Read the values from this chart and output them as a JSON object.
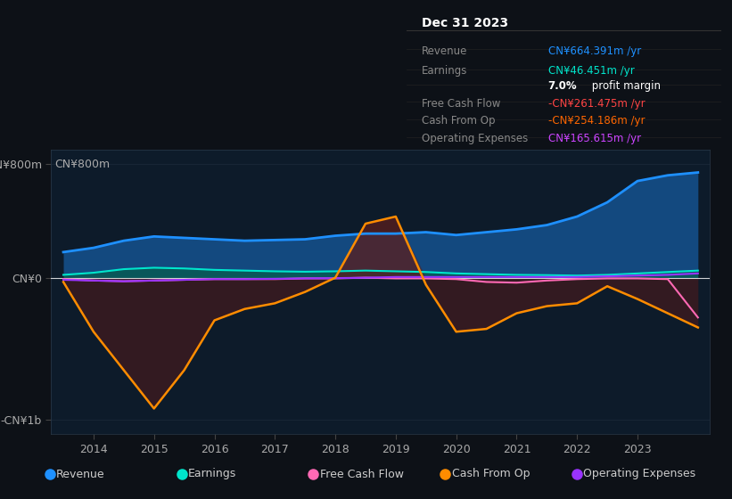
{
  "bg_color": "#0d1117",
  "plot_bg_color": "#0d1b2a",
  "title_box": {
    "date": "Dec 31 2023",
    "rows": [
      {
        "label": "Revenue",
        "value": "CN¥664.391m /yr",
        "value_color": "#00bfff"
      },
      {
        "label": "Earnings",
        "value": "CN¥46.451m /yr",
        "value_color": "#00e5cc"
      },
      {
        "label": "",
        "value": "7.0% profit margin",
        "value_color": "#ffffff",
        "bold_part": "7.0%"
      },
      {
        "label": "Free Cash Flow",
        "value": "-CN¥261.475m /yr",
        "value_color": "#ff4444"
      },
      {
        "label": "Cash From Op",
        "value": "-CN¥254.186m /yr",
        "value_color": "#ff6600"
      },
      {
        "label": "Operating Expenses",
        "value": "CN¥165.615m /yr",
        "value_color": "#cc44ff"
      }
    ]
  },
  "years": [
    2013.5,
    2014,
    2014.5,
    2015,
    2015.5,
    2016,
    2016.5,
    2017,
    2017.5,
    2018,
    2018.5,
    2019,
    2019.5,
    2020,
    2020.5,
    2021,
    2021.5,
    2022,
    2022.5,
    2023,
    2023.5,
    2024
  ],
  "revenue": [
    180,
    210,
    260,
    290,
    280,
    270,
    260,
    265,
    270,
    295,
    310,
    310,
    320,
    300,
    320,
    340,
    370,
    430,
    530,
    680,
    720,
    740
  ],
  "earnings": [
    20,
    35,
    60,
    70,
    65,
    55,
    50,
    45,
    42,
    45,
    50,
    45,
    40,
    30,
    25,
    20,
    18,
    15,
    20,
    30,
    40,
    50
  ],
  "free_cash_flow": [
    -10,
    -20,
    -25,
    -20,
    -15,
    -10,
    -10,
    -10,
    -5,
    -5,
    0,
    -5,
    -5,
    -10,
    -30,
    -35,
    -20,
    -10,
    -5,
    -5,
    -10,
    -280
  ],
  "cash_from_op": [
    -30,
    -380,
    -650,
    -920,
    -650,
    -300,
    -220,
    -180,
    -100,
    0,
    380,
    430,
    -50,
    -380,
    -360,
    -250,
    -200,
    -180,
    -60,
    -150,
    -250,
    -350
  ],
  "operating_expenses": [
    -15,
    -20,
    -25,
    -20,
    -15,
    -10,
    -10,
    -8,
    -5,
    -3,
    0,
    5,
    5,
    5,
    5,
    5,
    5,
    5,
    10,
    15,
    20,
    30
  ],
  "revenue_color": "#1e90ff",
  "earnings_color": "#00e5cc",
  "free_cash_flow_color": "#ff69b4",
  "cash_from_op_color": "#ff8c00",
  "operating_expenses_color": "#9933ff",
  "ylim": [
    -1100,
    900
  ],
  "ytick_labels": [
    "-CN¥1b",
    "CN¥0",
    "CN¥800m"
  ],
  "ytick_values": [
    -1000,
    0,
    800
  ],
  "xtick_years": [
    2014,
    2015,
    2016,
    2017,
    2018,
    2019,
    2020,
    2021,
    2022,
    2023
  ],
  "legend": [
    {
      "label": "Revenue",
      "color": "#1e90ff"
    },
    {
      "label": "Earnings",
      "color": "#00e5cc"
    },
    {
      "label": "Free Cash Flow",
      "color": "#ff69b4"
    },
    {
      "label": "Cash From Op",
      "color": "#ff8c00"
    },
    {
      "label": "Operating Expenses",
      "color": "#9933ff"
    }
  ]
}
